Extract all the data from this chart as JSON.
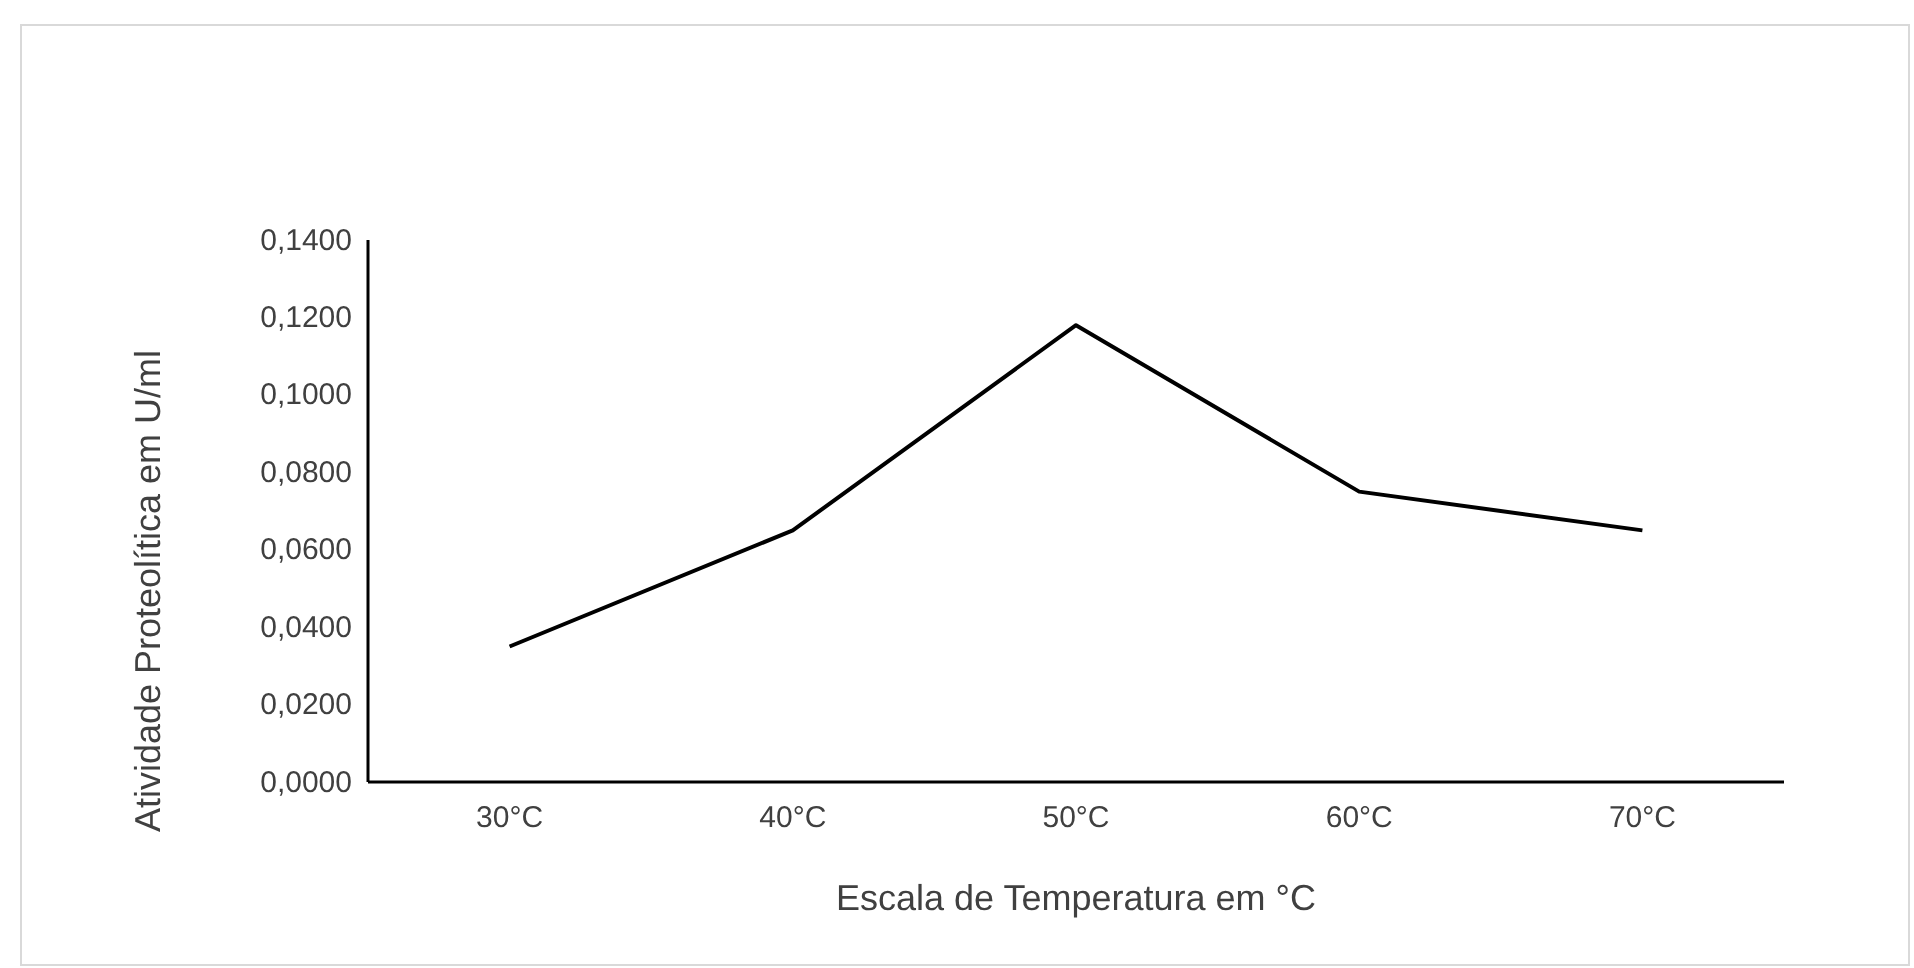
{
  "chart_data": {
    "type": "line",
    "xlabel": "Escala de Temperatura em °C",
    "ylabel": "Atividade Proteolítica em U/ml",
    "categories": [
      "30°C",
      "40°C",
      "50°C",
      "60°C",
      "70°C"
    ],
    "series": [
      {
        "color": "#000000",
        "values": [
          0.035,
          0.065,
          0.118,
          0.075,
          0.065
        ]
      }
    ],
    "ylim": [
      0,
      0.14
    ],
    "yticks": [
      {
        "value": 0,
        "label": "0,0000"
      },
      {
        "value": 0.02,
        "label": "0,0200"
      },
      {
        "value": 0.04,
        "label": "0,0400"
      },
      {
        "value": 0.06,
        "label": "0,0600"
      },
      {
        "value": 0.08,
        "label": "0,0800"
      },
      {
        "value": 0.1,
        "label": "0,1000"
      },
      {
        "value": 0.12,
        "label": "0,1200"
      },
      {
        "value": 0.14,
        "label": "0,1400"
      }
    ],
    "grid": false,
    "marker": "none",
    "line_style": "solid"
  }
}
